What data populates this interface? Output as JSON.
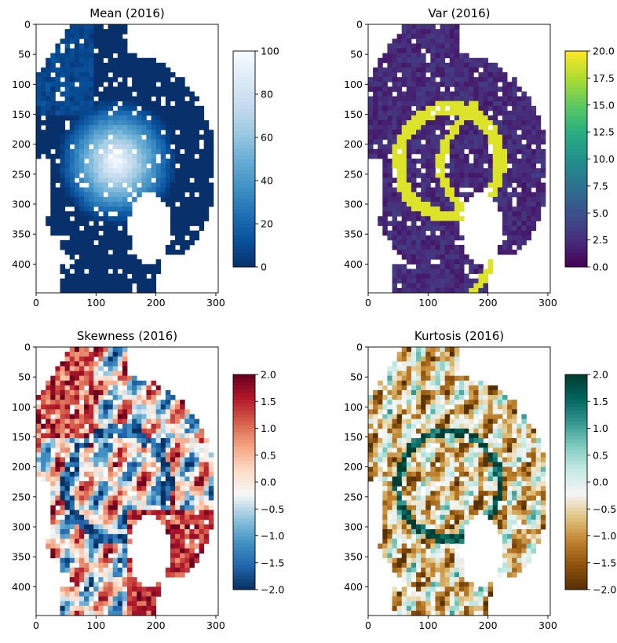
{
  "chart_data": [
    {
      "type": "heatmap",
      "title": "Mean (2016)",
      "xlim": [
        0,
        304
      ],
      "ylim": [
        448,
        0
      ],
      "xticks": [
        "0",
        "100",
        "200",
        "300"
      ],
      "yticks": [
        "0",
        "50",
        "100",
        "150",
        "200",
        "250",
        "300",
        "350",
        "400"
      ],
      "colorbar": {
        "range": [
          0,
          100
        ],
        "ticks": [
          "0",
          "20",
          "40",
          "60",
          "80",
          "100"
        ],
        "colormap": "Blues_r"
      }
    },
    {
      "type": "heatmap",
      "title": "Var (2016)",
      "xlim": [
        0,
        304
      ],
      "ylim": [
        448,
        0
      ],
      "xticks": [
        "0",
        "100",
        "200",
        "300"
      ],
      "yticks": [
        "0",
        "50",
        "100",
        "150",
        "200",
        "250",
        "300",
        "350",
        "400"
      ],
      "colorbar": {
        "range": [
          0,
          20
        ],
        "ticks": [
          "0.0",
          "2.5",
          "5.0",
          "7.5",
          "10.0",
          "12.5",
          "15.0",
          "17.5",
          "20.0"
        ],
        "colormap": "viridis"
      }
    },
    {
      "type": "heatmap",
      "title": "Skewness (2016)",
      "xlim": [
        0,
        304
      ],
      "ylim": [
        448,
        0
      ],
      "xticks": [
        "0",
        "100",
        "200",
        "300"
      ],
      "yticks": [
        "0",
        "50",
        "100",
        "150",
        "200",
        "250",
        "300",
        "350",
        "400"
      ],
      "colorbar": {
        "range": [
          -2,
          2
        ],
        "ticks": [
          "−2.0",
          "−1.5",
          "−1.0",
          "−0.5",
          "0.0",
          "0.5",
          "1.0",
          "1.5",
          "2.0"
        ],
        "colormap": "RdBu_r"
      }
    },
    {
      "type": "heatmap",
      "title": "Kurtosis (2016)",
      "xlim": [
        0,
        304
      ],
      "ylim": [
        448,
        0
      ],
      "xticks": [
        "0",
        "100",
        "200",
        "300"
      ],
      "yticks": [
        "0",
        "50",
        "100",
        "150",
        "200",
        "250",
        "300",
        "350",
        "400"
      ],
      "colorbar": {
        "range": [
          -2,
          2
        ],
        "ticks": [
          "−2.0",
          "−1.5",
          "−1.0",
          "−0.5",
          "0.0",
          "0.5",
          "1.0",
          "1.5",
          "2.0"
        ],
        "colormap": "BrBG"
      }
    }
  ],
  "colormaps": {
    "Blues_r": [
      "#08306b",
      "#08519c",
      "#2171b5",
      "#4292c6",
      "#6baed6",
      "#9ecae1",
      "#c6dbef",
      "#deebf7",
      "#f7fbff"
    ],
    "viridis": [
      "#440154",
      "#472d7b",
      "#3b528b",
      "#2c728e",
      "#21918c",
      "#28ae80",
      "#5ec962",
      "#addc30",
      "#fde725"
    ],
    "RdBu_r": [
      "#053061",
      "#2166ac",
      "#4393c3",
      "#92c5de",
      "#f7f7f7",
      "#fddbc7",
      "#f4a582",
      "#d6604d",
      "#b2182b",
      "#67001f"
    ],
    "BrBG": [
      "#543005",
      "#8c510a",
      "#bf812d",
      "#dfc27d",
      "#f5f5f5",
      "#c7eae5",
      "#80cdc1",
      "#35978f",
      "#01665e",
      "#003c30"
    ]
  }
}
